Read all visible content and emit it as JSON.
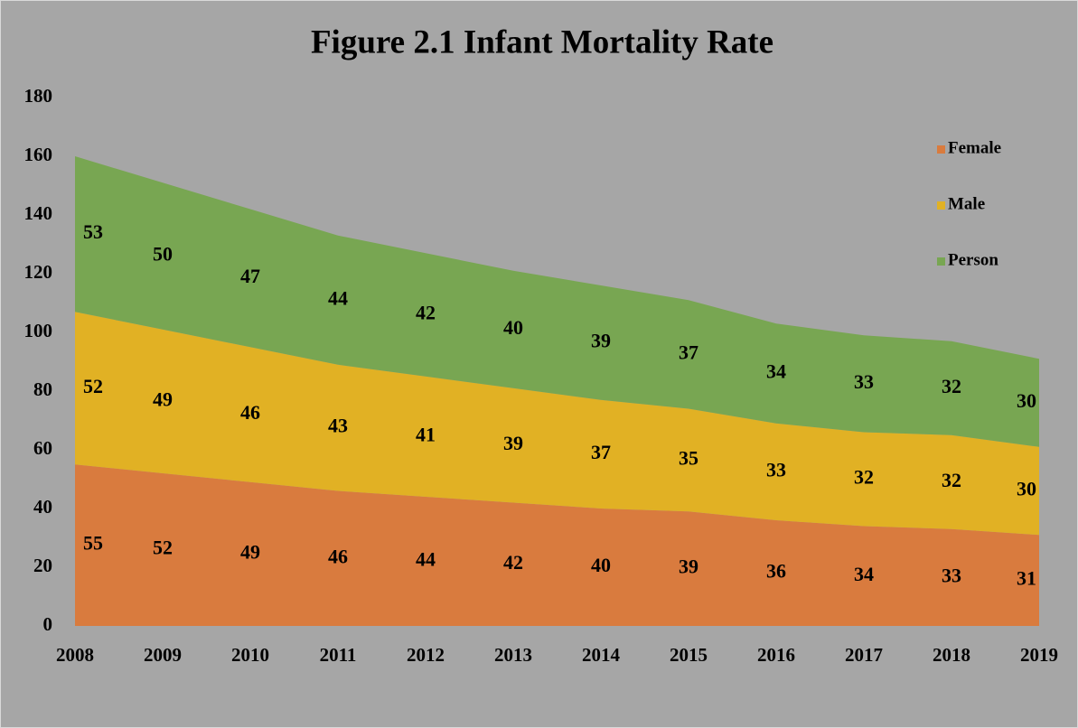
{
  "chart_data": {
    "type": "area",
    "stacked": true,
    "title": "Figure 2.1 Infant Mortality Rate",
    "categories": [
      "2008",
      "2009",
      "2010",
      "2011",
      "2012",
      "2013",
      "2014",
      "2015",
      "2016",
      "2017",
      "2018",
      "2019"
    ],
    "series": [
      {
        "name": "Female",
        "color": "#d97b3e",
        "values": [
          55,
          52,
          49,
          46,
          44,
          42,
          40,
          39,
          36,
          34,
          33,
          31
        ]
      },
      {
        "name": "Male",
        "color": "#e1b124",
        "values": [
          52,
          49,
          46,
          43,
          41,
          39,
          37,
          35,
          33,
          32,
          32,
          30
        ]
      },
      {
        "name": "Person",
        "color": "#78a652",
        "values": [
          53,
          50,
          47,
          44,
          42,
          40,
          39,
          37,
          34,
          33,
          32,
          30
        ]
      }
    ],
    "ylim": [
      0,
      180
    ],
    "yticks": [
      0,
      20,
      40,
      60,
      80,
      100,
      120,
      140,
      160,
      180
    ],
    "grid": false,
    "legend": "right",
    "data_labels": true
  }
}
